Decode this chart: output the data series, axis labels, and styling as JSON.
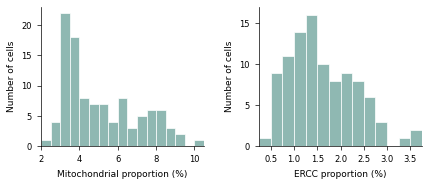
{
  "left_hist": {
    "bin_edges": [
      2.0,
      2.5,
      3.0,
      3.5,
      4.0,
      4.5,
      5.0,
      5.5,
      6.0,
      6.5,
      7.0,
      7.5,
      8.0,
      8.5,
      9.0,
      9.5,
      10.0,
      10.5
    ],
    "counts": [
      1,
      4,
      22,
      18,
      8,
      7,
      7,
      4,
      8,
      3,
      5,
      6,
      6,
      3,
      2,
      0,
      1
    ],
    "xlabel": "Mitochondrial proportion (%)",
    "ylabel": "Number of cells",
    "xlim": [
      2,
      10.5
    ],
    "ylim": [
      0,
      23
    ],
    "xticks": [
      2,
      4,
      6,
      8,
      10
    ],
    "yticks": [
      0,
      5,
      10,
      15,
      20
    ]
  },
  "right_hist": {
    "bin_edges": [
      0.25,
      0.5,
      0.75,
      1.0,
      1.25,
      1.5,
      1.75,
      2.0,
      2.25,
      2.5,
      2.75,
      3.0,
      3.25,
      3.5,
      3.75
    ],
    "counts": [
      1,
      9,
      11,
      14,
      16,
      10,
      8,
      9,
      8,
      6,
      3,
      0,
      1,
      2
    ],
    "xlabel": "ERCC proportion (%)",
    "ylabel": "Number of cells",
    "xlim": [
      0.25,
      3.75
    ],
    "ylim": [
      0,
      17
    ],
    "xticks": [
      0.5,
      1.0,
      1.5,
      2.0,
      2.5,
      3.0,
      3.5
    ],
    "yticks": [
      0,
      5,
      10,
      15
    ]
  },
  "bar_color": "#8fb8b2",
  "bar_edgecolor": "#ffffff",
  "bg_color": "#ffffff",
  "font_size": 6,
  "label_font_size": 6.5
}
